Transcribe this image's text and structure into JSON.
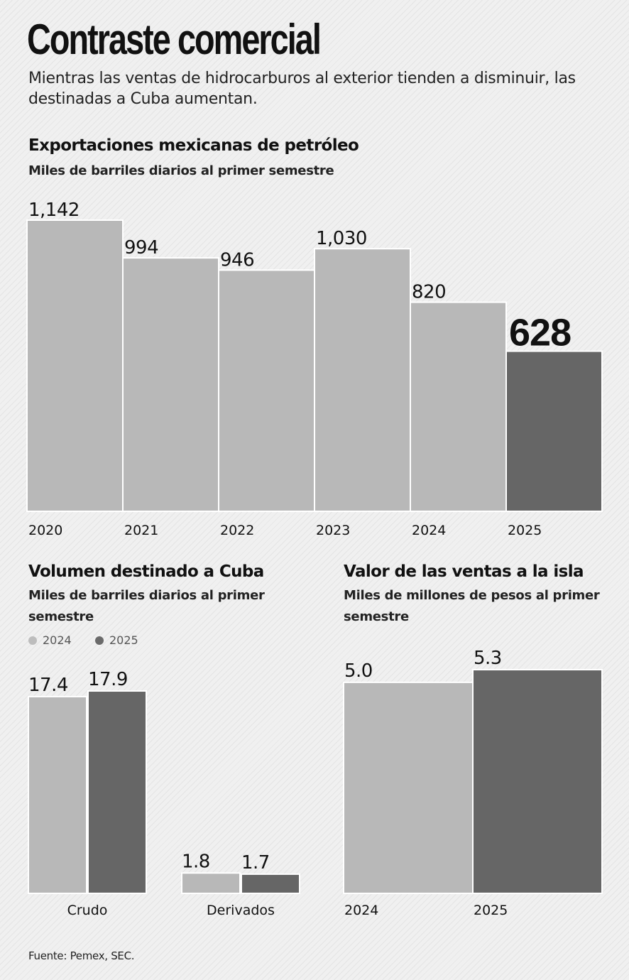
{
  "title": "Contraste comercial",
  "subtitle": "Mientras las ventas de hidrocarburos al exterior tienden a disminuir, las destinadas a Cuba aumentan.",
  "colors": {
    "light_bar": "#b8b8b8",
    "dark_bar": "#666666",
    "outline": "#ffffff"
  },
  "source": "Fuente: Pemex, SEC.",
  "chart_data": [
    {
      "type": "bar",
      "title": "Exportaciones mexicanas de petróleo",
      "ylabel": "Miles de barriles diarios al primer semestre",
      "categories": [
        "2020",
        "2021",
        "2022",
        "2023",
        "2024",
        "2025"
      ],
      "values": [
        1142,
        994,
        946,
        1030,
        820,
        628
      ],
      "labels": [
        "1,142",
        "994",
        "946",
        "1,030",
        "820",
        "628"
      ],
      "highlight_index": 5,
      "ylim": [
        0,
        1142
      ]
    },
    {
      "type": "bar",
      "title": "Volumen destinado a Cuba",
      "ylabel": "Miles de barriles diarios al primer semestre",
      "categories": [
        "Crudo",
        "Derivados"
      ],
      "series": [
        {
          "name": "2024",
          "values": [
            17.4,
            1.8
          ],
          "labels": [
            "17.4",
            "1.8"
          ]
        },
        {
          "name": "2025",
          "values": [
            17.9,
            1.7
          ],
          "labels": [
            "17.9",
            "1.7"
          ]
        }
      ],
      "legend": [
        "2024",
        "2025"
      ],
      "ylim": [
        0,
        17.9
      ]
    },
    {
      "type": "bar",
      "title": "Valor de las ventas a la isla",
      "ylabel": "Miles de millones de pesos al primer semestre",
      "categories": [
        "2024",
        "2025"
      ],
      "values": [
        5.0,
        5.3
      ],
      "labels": [
        "5.0",
        "5.3"
      ],
      "ylim": [
        0,
        5.3
      ]
    }
  ]
}
